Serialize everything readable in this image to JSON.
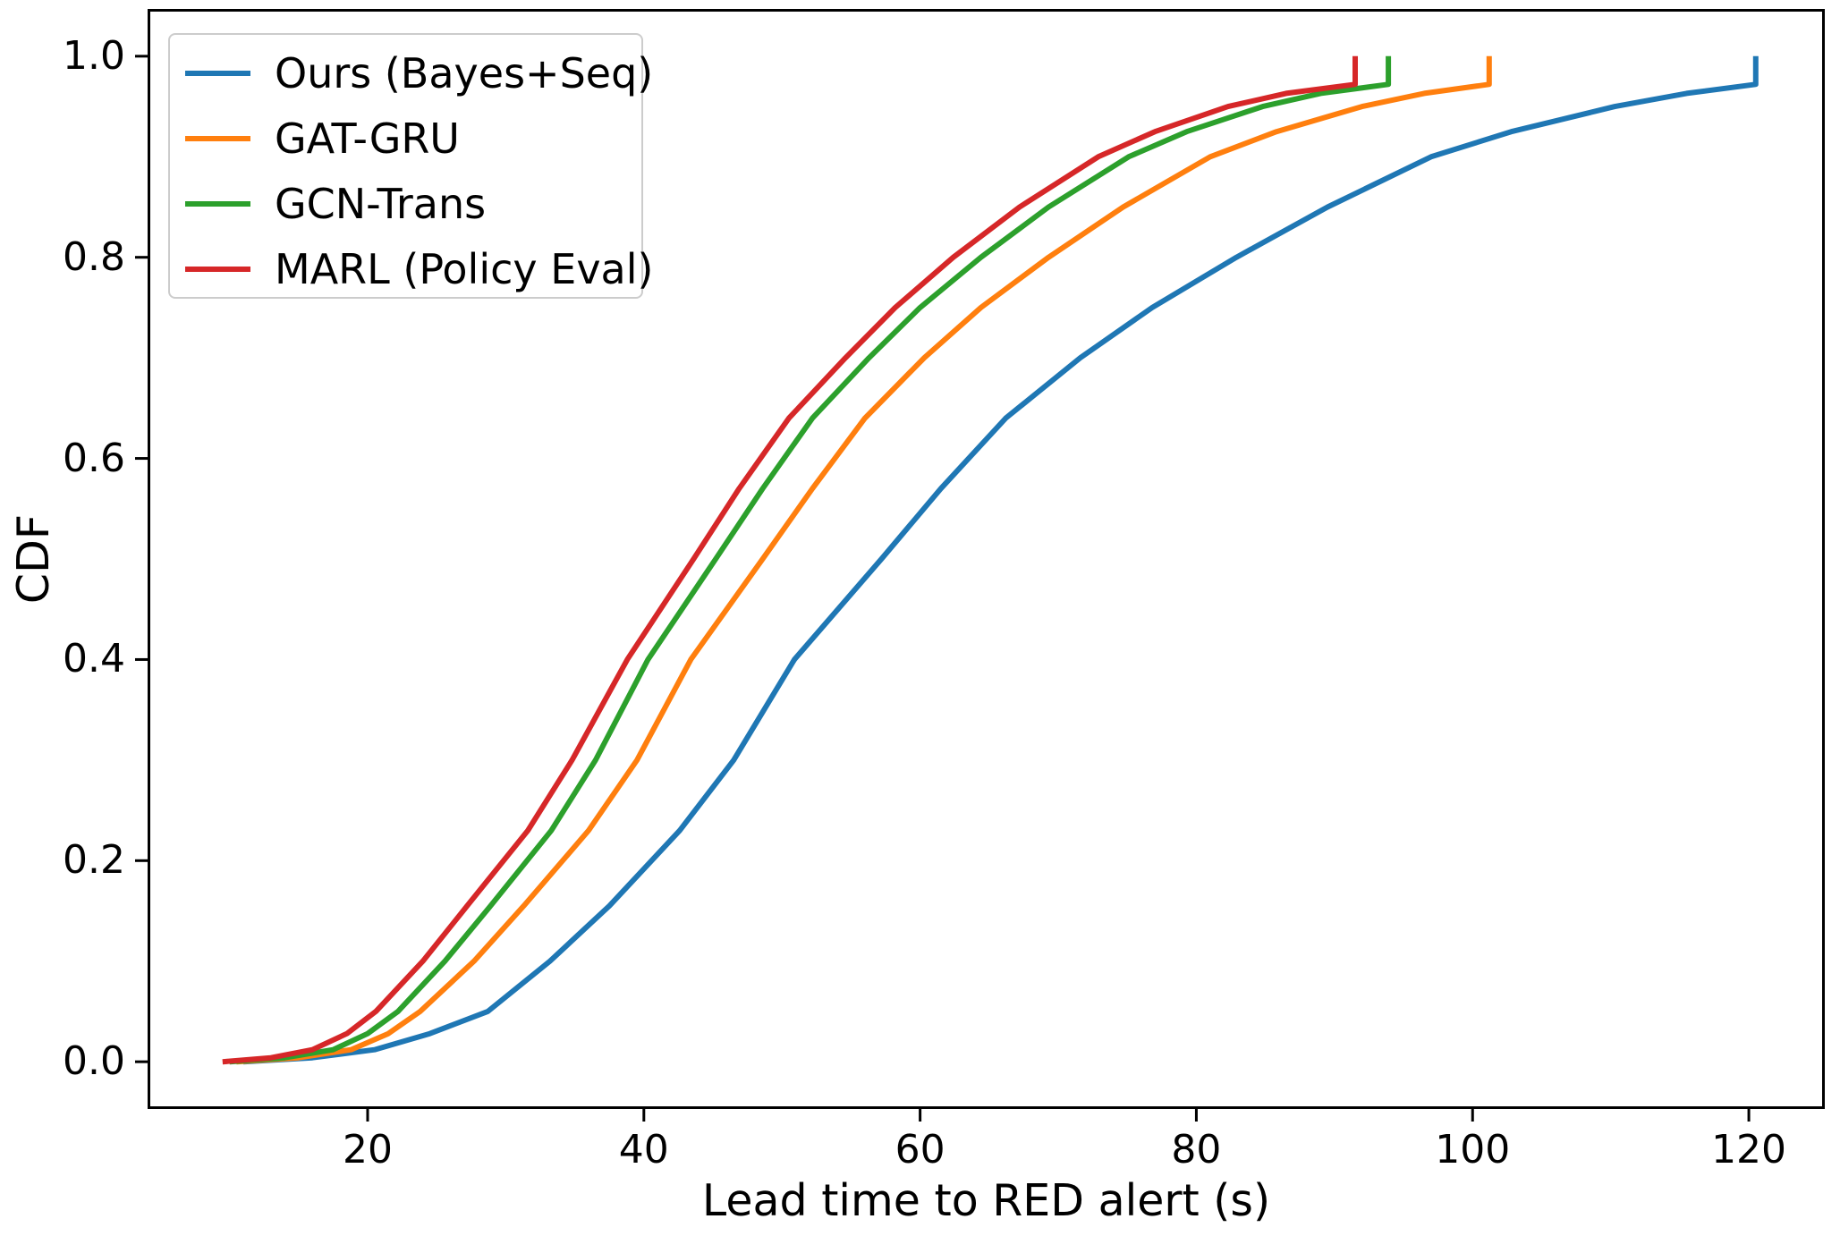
{
  "figure": {
    "background": "#ffffff",
    "text_color": "#000000",
    "spine_color": "#000000",
    "legend_border_color": "#cccccc"
  },
  "chart_data": {
    "type": "line",
    "subtype": "empirical-cdf",
    "title": "",
    "xlabel": "Lead time to RED alert (s)",
    "ylabel": "CDF",
    "xlim": [
      4.07,
      125.5
    ],
    "ylim": [
      -0.047,
      1.047
    ],
    "x_ticks": [
      20,
      40,
      60,
      80,
      100,
      120
    ],
    "x_tick_labels": [
      "20",
      "40",
      "60",
      "80",
      "100",
      "120"
    ],
    "y_ticks": [
      0.0,
      0.2,
      0.4,
      0.6,
      0.8,
      1.0
    ],
    "y_tick_labels": [
      "0.0",
      "0.2",
      "0.4",
      "0.6",
      "0.8",
      "1.0"
    ],
    "grid": false,
    "legend_position": "upper left",
    "series": [
      {
        "name": "Ours (Bayes+Seq)",
        "color": "#1f77b4",
        "median": 57.2,
        "max": 120.5,
        "points": [
          [
            11.0,
            0.0
          ],
          [
            16.0,
            0.004
          ],
          [
            20.5,
            0.012
          ],
          [
            24.5,
            0.028
          ],
          [
            28.7,
            0.05
          ],
          [
            33.2,
            0.1
          ],
          [
            37.5,
            0.155
          ],
          [
            42.6,
            0.23
          ],
          [
            46.5,
            0.3
          ],
          [
            50.9,
            0.4
          ],
          [
            57.2,
            0.5
          ],
          [
            61.5,
            0.57
          ],
          [
            66.2,
            0.64
          ],
          [
            71.6,
            0.7
          ],
          [
            76.8,
            0.75
          ],
          [
            82.9,
            0.8
          ],
          [
            89.5,
            0.85
          ],
          [
            97.0,
            0.9
          ],
          [
            102.8,
            0.925
          ],
          [
            110.3,
            0.95
          ],
          [
            115.5,
            0.963
          ],
          [
            120.5,
            0.972
          ],
          [
            120.5,
            1.0
          ]
        ]
      },
      {
        "name": "GAT-GRU",
        "color": "#ff7f0e",
        "median": 48.6,
        "max": 101.2,
        "points": [
          [
            10.5,
            0.0
          ],
          [
            15.0,
            0.004
          ],
          [
            18.8,
            0.012
          ],
          [
            21.5,
            0.028
          ],
          [
            23.8,
            0.05
          ],
          [
            27.7,
            0.1
          ],
          [
            31.3,
            0.155
          ],
          [
            36.0,
            0.23
          ],
          [
            39.5,
            0.3
          ],
          [
            43.4,
            0.4
          ],
          [
            48.6,
            0.5
          ],
          [
            52.2,
            0.57
          ],
          [
            56.0,
            0.64
          ],
          [
            60.3,
            0.7
          ],
          [
            64.4,
            0.75
          ],
          [
            69.3,
            0.8
          ],
          [
            74.7,
            0.85
          ],
          [
            81.0,
            0.9
          ],
          [
            85.8,
            0.925
          ],
          [
            92.0,
            0.95
          ],
          [
            96.5,
            0.963
          ],
          [
            101.2,
            0.972
          ],
          [
            101.2,
            1.0
          ]
        ]
      },
      {
        "name": "GCN-Trans",
        "color": "#2ca02c",
        "median": 45.2,
        "max": 93.9,
        "points": [
          [
            10.0,
            0.0
          ],
          [
            14.0,
            0.004
          ],
          [
            17.5,
            0.012
          ],
          [
            20.0,
            0.028
          ],
          [
            22.2,
            0.05
          ],
          [
            25.6,
            0.1
          ],
          [
            28.9,
            0.155
          ],
          [
            33.3,
            0.23
          ],
          [
            36.5,
            0.3
          ],
          [
            40.3,
            0.4
          ],
          [
            45.2,
            0.5
          ],
          [
            48.6,
            0.57
          ],
          [
            52.2,
            0.64
          ],
          [
            56.3,
            0.7
          ],
          [
            60.0,
            0.75
          ],
          [
            64.4,
            0.8
          ],
          [
            69.3,
            0.85
          ],
          [
            75.1,
            0.9
          ],
          [
            79.3,
            0.925
          ],
          [
            84.8,
            0.95
          ],
          [
            89.0,
            0.963
          ],
          [
            93.9,
            0.972
          ],
          [
            93.9,
            1.0
          ]
        ]
      },
      {
        "name": "MARL (Policy Eval)",
        "color": "#d62728",
        "median": 43.6,
        "max": 91.5,
        "points": [
          [
            9.5,
            0.0
          ],
          [
            13.0,
            0.004
          ],
          [
            16.0,
            0.012
          ],
          [
            18.5,
            0.028
          ],
          [
            20.6,
            0.05
          ],
          [
            24.0,
            0.1
          ],
          [
            27.2,
            0.155
          ],
          [
            31.6,
            0.23
          ],
          [
            34.8,
            0.3
          ],
          [
            38.8,
            0.4
          ],
          [
            43.6,
            0.5
          ],
          [
            46.9,
            0.57
          ],
          [
            50.5,
            0.64
          ],
          [
            54.6,
            0.7
          ],
          [
            58.2,
            0.75
          ],
          [
            62.4,
            0.8
          ],
          [
            67.2,
            0.85
          ],
          [
            72.9,
            0.9
          ],
          [
            77.0,
            0.925
          ],
          [
            82.3,
            0.95
          ],
          [
            86.5,
            0.963
          ],
          [
            91.5,
            0.972
          ],
          [
            91.5,
            1.0
          ]
        ]
      }
    ]
  }
}
